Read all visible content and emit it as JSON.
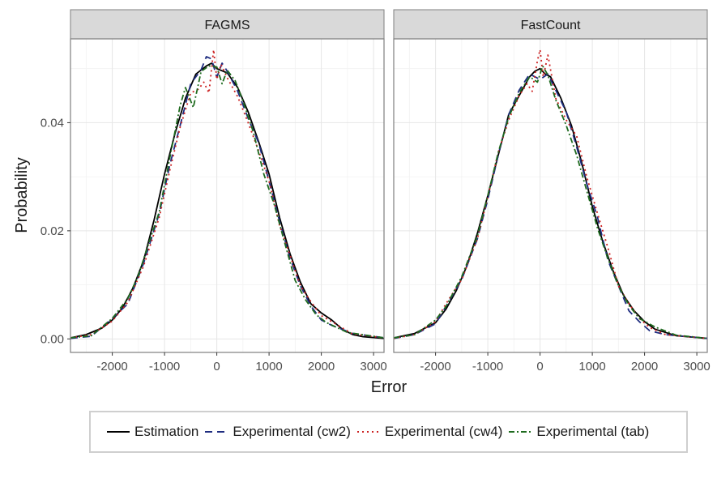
{
  "chart_data": {
    "type": "line",
    "xlabel": "Error",
    "ylabel": "Probability",
    "xlim": [
      -2800,
      3200
    ],
    "ylim": [
      -0.0025,
      0.0555
    ],
    "xticks": [
      -2000,
      -1000,
      0,
      1000,
      2000,
      3000
    ],
    "yticks": [
      0.0,
      0.02,
      0.04
    ],
    "ytick_labels": [
      "0.00",
      "0.02",
      "0.04"
    ],
    "xtick_labels": [
      "-2000",
      "-1000",
      "0",
      "1000",
      "2000",
      "3000"
    ],
    "grid": true,
    "legend_position": "bottom",
    "series_styles": [
      {
        "name": "Estimation",
        "color": "#000000",
        "dash": ""
      },
      {
        "name": "Experimental (cw2)",
        "color": "#1f2d80",
        "dash": "9,6"
      },
      {
        "name": "Experimental (cw4)",
        "color": "#cc2222",
        "dash": "2,4"
      },
      {
        "name": "Experimental (tab)",
        "color": "#1f6b1f",
        "dash": "7,3,2,3"
      }
    ],
    "panels": [
      {
        "title": "FAGMS",
        "series": [
          {
            "name": "Estimation",
            "x": [
              -2800,
              -2500,
              -2200,
              -2000,
              -1800,
              -1600,
              -1400,
              -1200,
              -1000,
              -800,
              -600,
              -400,
              -200,
              -100,
              0,
              200,
              400,
              600,
              800,
              1000,
              1200,
              1400,
              1600,
              1800,
              2000,
              2200,
              2400,
              2600,
              2800,
              3200
            ],
            "y": [
              0.0002,
              0.0008,
              0.002,
              0.0035,
              0.0058,
              0.0095,
              0.0145,
              0.022,
              0.0305,
              0.038,
              0.0445,
              0.049,
              0.0505,
              0.051,
              0.05,
              0.0492,
              0.0465,
              0.042,
              0.0365,
              0.0305,
              0.0225,
              0.0158,
              0.0105,
              0.0065,
              0.0048,
              0.0035,
              0.0018,
              0.0008,
              0.0004,
              0.0001
            ]
          },
          {
            "name": "Experimental (cw2)",
            "x": [
              -2800,
              -2400,
              -2000,
              -1700,
              -1400,
              -1100,
              -900,
              -700,
              -500,
              -300,
              -200,
              -100,
              0,
              100,
              200,
              400,
              600,
              800,
              1000,
              1200,
              1400,
              1600,
              1800,
              2000,
              2200,
              2600,
              3200
            ],
            "y": [
              0.0001,
              0.0005,
              0.0038,
              0.0065,
              0.014,
              0.0232,
              0.0322,
              0.0395,
              0.0472,
              0.0498,
              0.0522,
              0.0518,
              0.0484,
              0.051,
              0.0495,
              0.0458,
              0.0408,
              0.0363,
              0.0292,
              0.0218,
              0.015,
              0.0098,
              0.0061,
              0.0035,
              0.0025,
              0.001,
              0.0002
            ]
          },
          {
            "name": "Experimental (cw4)",
            "x": [
              -2800,
              -2400,
              -2000,
              -1700,
              -1400,
              -1100,
              -900,
              -700,
              -500,
              -350,
              -250,
              -150,
              -60,
              0,
              80,
              200,
              400,
              600,
              800,
              1000,
              1200,
              1400,
              1600,
              1800,
              2000,
              2200,
              2600,
              3200
            ],
            "y": [
              0.0002,
              0.0008,
              0.0033,
              0.0068,
              0.0135,
              0.0225,
              0.0312,
              0.0392,
              0.0455,
              0.0462,
              0.0475,
              0.0455,
              0.0535,
              0.048,
              0.0508,
              0.0483,
              0.0448,
              0.04,
              0.0348,
              0.0292,
              0.021,
              0.0155,
              0.0098,
              0.0069,
              0.0043,
              0.0032,
              0.0009,
              0.0002
            ]
          },
          {
            "name": "Experimental (tab)",
            "x": [
              -2800,
              -2400,
              -2000,
              -1700,
              -1500,
              -1300,
              -1100,
              -900,
              -700,
              -600,
              -450,
              -300,
              -150,
              0,
              100,
              200,
              350,
              500,
              700,
              900,
              1100,
              1300,
              1500,
              1700,
              1900,
              2100,
              2500,
              3200
            ],
            "y": [
              0.0002,
              0.0006,
              0.0038,
              0.0075,
              0.0118,
              0.0178,
              0.0235,
              0.0335,
              0.0432,
              0.0465,
              0.0428,
              0.0495,
              0.0505,
              0.0503,
              0.0472,
              0.0497,
              0.0478,
              0.044,
              0.0382,
              0.0305,
              0.0248,
              0.0178,
              0.0108,
              0.0072,
              0.0045,
              0.003,
              0.0012,
              0.0002
            ]
          }
        ]
      },
      {
        "title": "FastCount",
        "series": [
          {
            "name": "Estimation",
            "x": [
              -2800,
              -2400,
              -2000,
              -1800,
              -1600,
              -1400,
              -1200,
              -1000,
              -800,
              -600,
              -400,
              -200,
              -100,
              0,
              100,
              200,
              400,
              600,
              800,
              1000,
              1200,
              1400,
              1600,
              1800,
              2000,
              2200,
              2600,
              3200
            ],
            "y": [
              0.0002,
              0.001,
              0.003,
              0.0055,
              0.009,
              0.0135,
              0.0195,
              0.0265,
              0.034,
              0.0415,
              0.045,
              0.0485,
              0.0495,
              0.05,
              0.049,
              0.0485,
              0.0445,
              0.0395,
              0.0325,
              0.0245,
              0.018,
              0.0125,
              0.008,
              0.0052,
              0.0032,
              0.0018,
              0.0006,
              0.0001
            ]
          },
          {
            "name": "Experimental (cw2)",
            "x": [
              -2800,
              -2400,
              -2000,
              -1800,
              -1500,
              -1200,
              -1000,
              -800,
              -600,
              -400,
              -200,
              0,
              150,
              300,
              500,
              700,
              900,
              1100,
              1300,
              1500,
              1700,
              1900,
              2100,
              2400,
              3200
            ],
            "y": [
              0.0001,
              0.0008,
              0.0028,
              0.006,
              0.011,
              0.0185,
              0.0258,
              0.034,
              0.0415,
              0.046,
              0.049,
              0.048,
              0.049,
              0.046,
              0.042,
              0.0355,
              0.0285,
              0.0225,
              0.0145,
              0.0098,
              0.0052,
              0.0032,
              0.0015,
              0.0008,
              0.0001
            ]
          },
          {
            "name": "Experimental (cw4)",
            "x": [
              -2800,
              -2400,
              -2000,
              -1800,
              -1500,
              -1200,
              -1000,
              -800,
              -600,
              -400,
              -250,
              -150,
              -50,
              0,
              60,
              150,
              300,
              500,
              700,
              900,
              1100,
              1300,
              1500,
              1700,
              1900,
              2100,
              2400,
              3200
            ],
            "y": [
              0.0001,
              0.0008,
              0.0032,
              0.0065,
              0.011,
              0.0185,
              0.0262,
              0.0345,
              0.0405,
              0.045,
              0.0472,
              0.0458,
              0.0515,
              0.0535,
              0.0485,
              0.0525,
              0.0445,
              0.0405,
              0.0375,
              0.0298,
              0.0232,
              0.0168,
              0.0098,
              0.0065,
              0.0038,
              0.0021,
              0.0008,
              0.0001
            ]
          },
          {
            "name": "Experimental (tab)",
            "x": [
              -2800,
              -2400,
              -2000,
              -1800,
              -1500,
              -1200,
              -1000,
              -800,
              -600,
              -400,
              -200,
              -50,
              50,
              150,
              300,
              500,
              700,
              900,
              1100,
              1300,
              1500,
              1700,
              1900,
              2200,
              2600,
              3200
            ],
            "y": [
              0.0002,
              0.0008,
              0.0035,
              0.006,
              0.0115,
              0.019,
              0.0265,
              0.0345,
              0.041,
              0.0455,
              0.0485,
              0.0475,
              0.0505,
              0.0488,
              0.0442,
              0.0395,
              0.034,
              0.0272,
              0.0205,
              0.0148,
              0.0098,
              0.0062,
              0.0038,
              0.0022,
              0.0007,
              0.0001
            ]
          }
        ]
      }
    ]
  }
}
